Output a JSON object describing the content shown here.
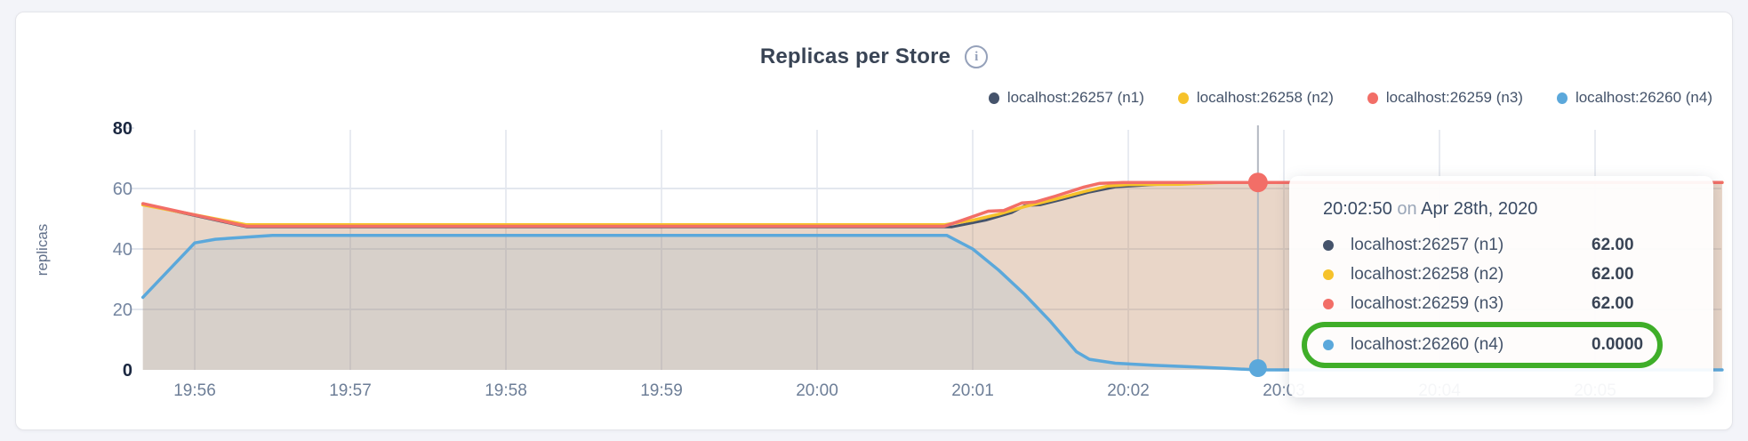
{
  "header": {
    "title": "Replicas per Store",
    "info_icon": "i"
  },
  "legend": {
    "items": [
      {
        "label": "localhost:26257 (n1)",
        "color": "#45536b"
      },
      {
        "label": "localhost:26258 (n2)",
        "color": "#f6c22b"
      },
      {
        "label": "localhost:26259 (n3)",
        "color": "#f26e67"
      },
      {
        "label": "localhost:26260 (n4)",
        "color": "#5ba8db"
      }
    ]
  },
  "tooltip": {
    "time": "20:02:50",
    "connector": "on",
    "date": "Apr 28th, 2020",
    "rows": [
      {
        "name": "localhost:26257 (n1)",
        "value": "62.00",
        "color": "#45536b",
        "highlighted": false
      },
      {
        "name": "localhost:26258 (n2)",
        "value": "62.00",
        "color": "#f6c22b",
        "highlighted": false
      },
      {
        "name": "localhost:26259 (n3)",
        "value": "62.00",
        "color": "#f26e67",
        "highlighted": false
      },
      {
        "name": "localhost:26260 (n4)",
        "value": "0.0000",
        "color": "#5ba8db",
        "highlighted": true
      }
    ],
    "annotation": {
      "highlight_color": "#3fae29"
    }
  },
  "chart_data": {
    "type": "area",
    "title": "Replicas per Store",
    "xlabel": "",
    "ylabel": "replicas",
    "ylim": [
      0,
      80
    ],
    "y_ticks": [
      0,
      20,
      40,
      60,
      80
    ],
    "y_ticks_bold": [
      0,
      80
    ],
    "y_gridlines": [
      20,
      40,
      60
    ],
    "x_ticks": [
      "19:56",
      "19:57",
      "19:58",
      "19:59",
      "20:00",
      "20:01",
      "20:02",
      "20:03",
      "20:04",
      "20:05"
    ],
    "x_range": [
      "19:55:40",
      "20:05:49"
    ],
    "grid": true,
    "legend_position": "top-right",
    "fill_opacity": 0.12,
    "series": [
      {
        "name": "localhost:26257 (n1)",
        "color": "#45536b",
        "line_width": 3,
        "points": [
          [
            "19:55:40",
            54.8
          ],
          [
            "19:56:20",
            47.3
          ],
          [
            "20:00:52",
            47.3
          ],
          [
            "20:01:05",
            49.5
          ],
          [
            "20:01:15",
            52
          ],
          [
            "20:01:20",
            54.3
          ],
          [
            "20:01:26",
            54.6
          ],
          [
            "20:01:35",
            56.5
          ],
          [
            "20:01:45",
            58.8
          ],
          [
            "20:01:55",
            60.5
          ],
          [
            "20:02:10",
            61.3
          ],
          [
            "20:02:35",
            62
          ],
          [
            "20:05:49",
            62
          ]
        ]
      },
      {
        "name": "localhost:26258 (n2)",
        "color": "#f6c22b",
        "line_width": 3.5,
        "points": [
          [
            "19:55:40",
            54.6
          ],
          [
            "19:56:20",
            48
          ],
          [
            "20:00:49",
            48
          ],
          [
            "20:01:00",
            49.5
          ],
          [
            "20:01:10",
            51.5
          ],
          [
            "20:01:20",
            54
          ],
          [
            "20:01:32",
            56.5
          ],
          [
            "20:01:43",
            59
          ],
          [
            "20:01:52",
            60.8
          ],
          [
            "20:02:00",
            61.3
          ],
          [
            "20:02:20",
            61.4
          ],
          [
            "20:02:35",
            62
          ],
          [
            "20:05:49",
            62
          ]
        ]
      },
      {
        "name": "localhost:26259 (n3)",
        "color": "#f26e67",
        "line_width": 3.5,
        "points": [
          [
            "19:55:40",
            55
          ],
          [
            "19:56:20",
            47.5
          ],
          [
            "20:00:49",
            47.5
          ],
          [
            "20:00:56",
            49.5
          ],
          [
            "20:01:06",
            52.5
          ],
          [
            "20:01:12",
            52.7
          ],
          [
            "20:01:19",
            55.2
          ],
          [
            "20:01:24",
            55.5
          ],
          [
            "20:01:32",
            57.5
          ],
          [
            "20:01:43",
            60.5
          ],
          [
            "20:01:49",
            61.7
          ],
          [
            "20:01:58",
            62
          ],
          [
            "20:05:49",
            62
          ]
        ]
      },
      {
        "name": "localhost:26260 (n4)",
        "color": "#5ba8db",
        "line_width": 3.5,
        "points": [
          [
            "19:55:40",
            24
          ],
          [
            "19:56:00",
            42
          ],
          [
            "19:56:08",
            43.2
          ],
          [
            "19:56:30",
            44.5
          ],
          [
            "20:00:50",
            44.5
          ],
          [
            "20:01:00",
            40
          ],
          [
            "20:01:10",
            33
          ],
          [
            "20:01:20",
            25
          ],
          [
            "20:01:30",
            16
          ],
          [
            "20:01:40",
            6
          ],
          [
            "20:01:45",
            3.5
          ],
          [
            "20:01:55",
            2.2
          ],
          [
            "20:02:10",
            1.5
          ],
          [
            "20:02:25",
            1
          ],
          [
            "20:02:40",
            0.4
          ],
          [
            "20:02:50",
            0
          ],
          [
            "20:05:49",
            0
          ]
        ]
      }
    ],
    "hover": {
      "time": "20:02:50",
      "line_color": "#b3b8c2",
      "markers": [
        {
          "series": 2,
          "value": 62,
          "radius": 11
        },
        {
          "series": 3,
          "value": 0,
          "radius": 10
        }
      ]
    }
  }
}
